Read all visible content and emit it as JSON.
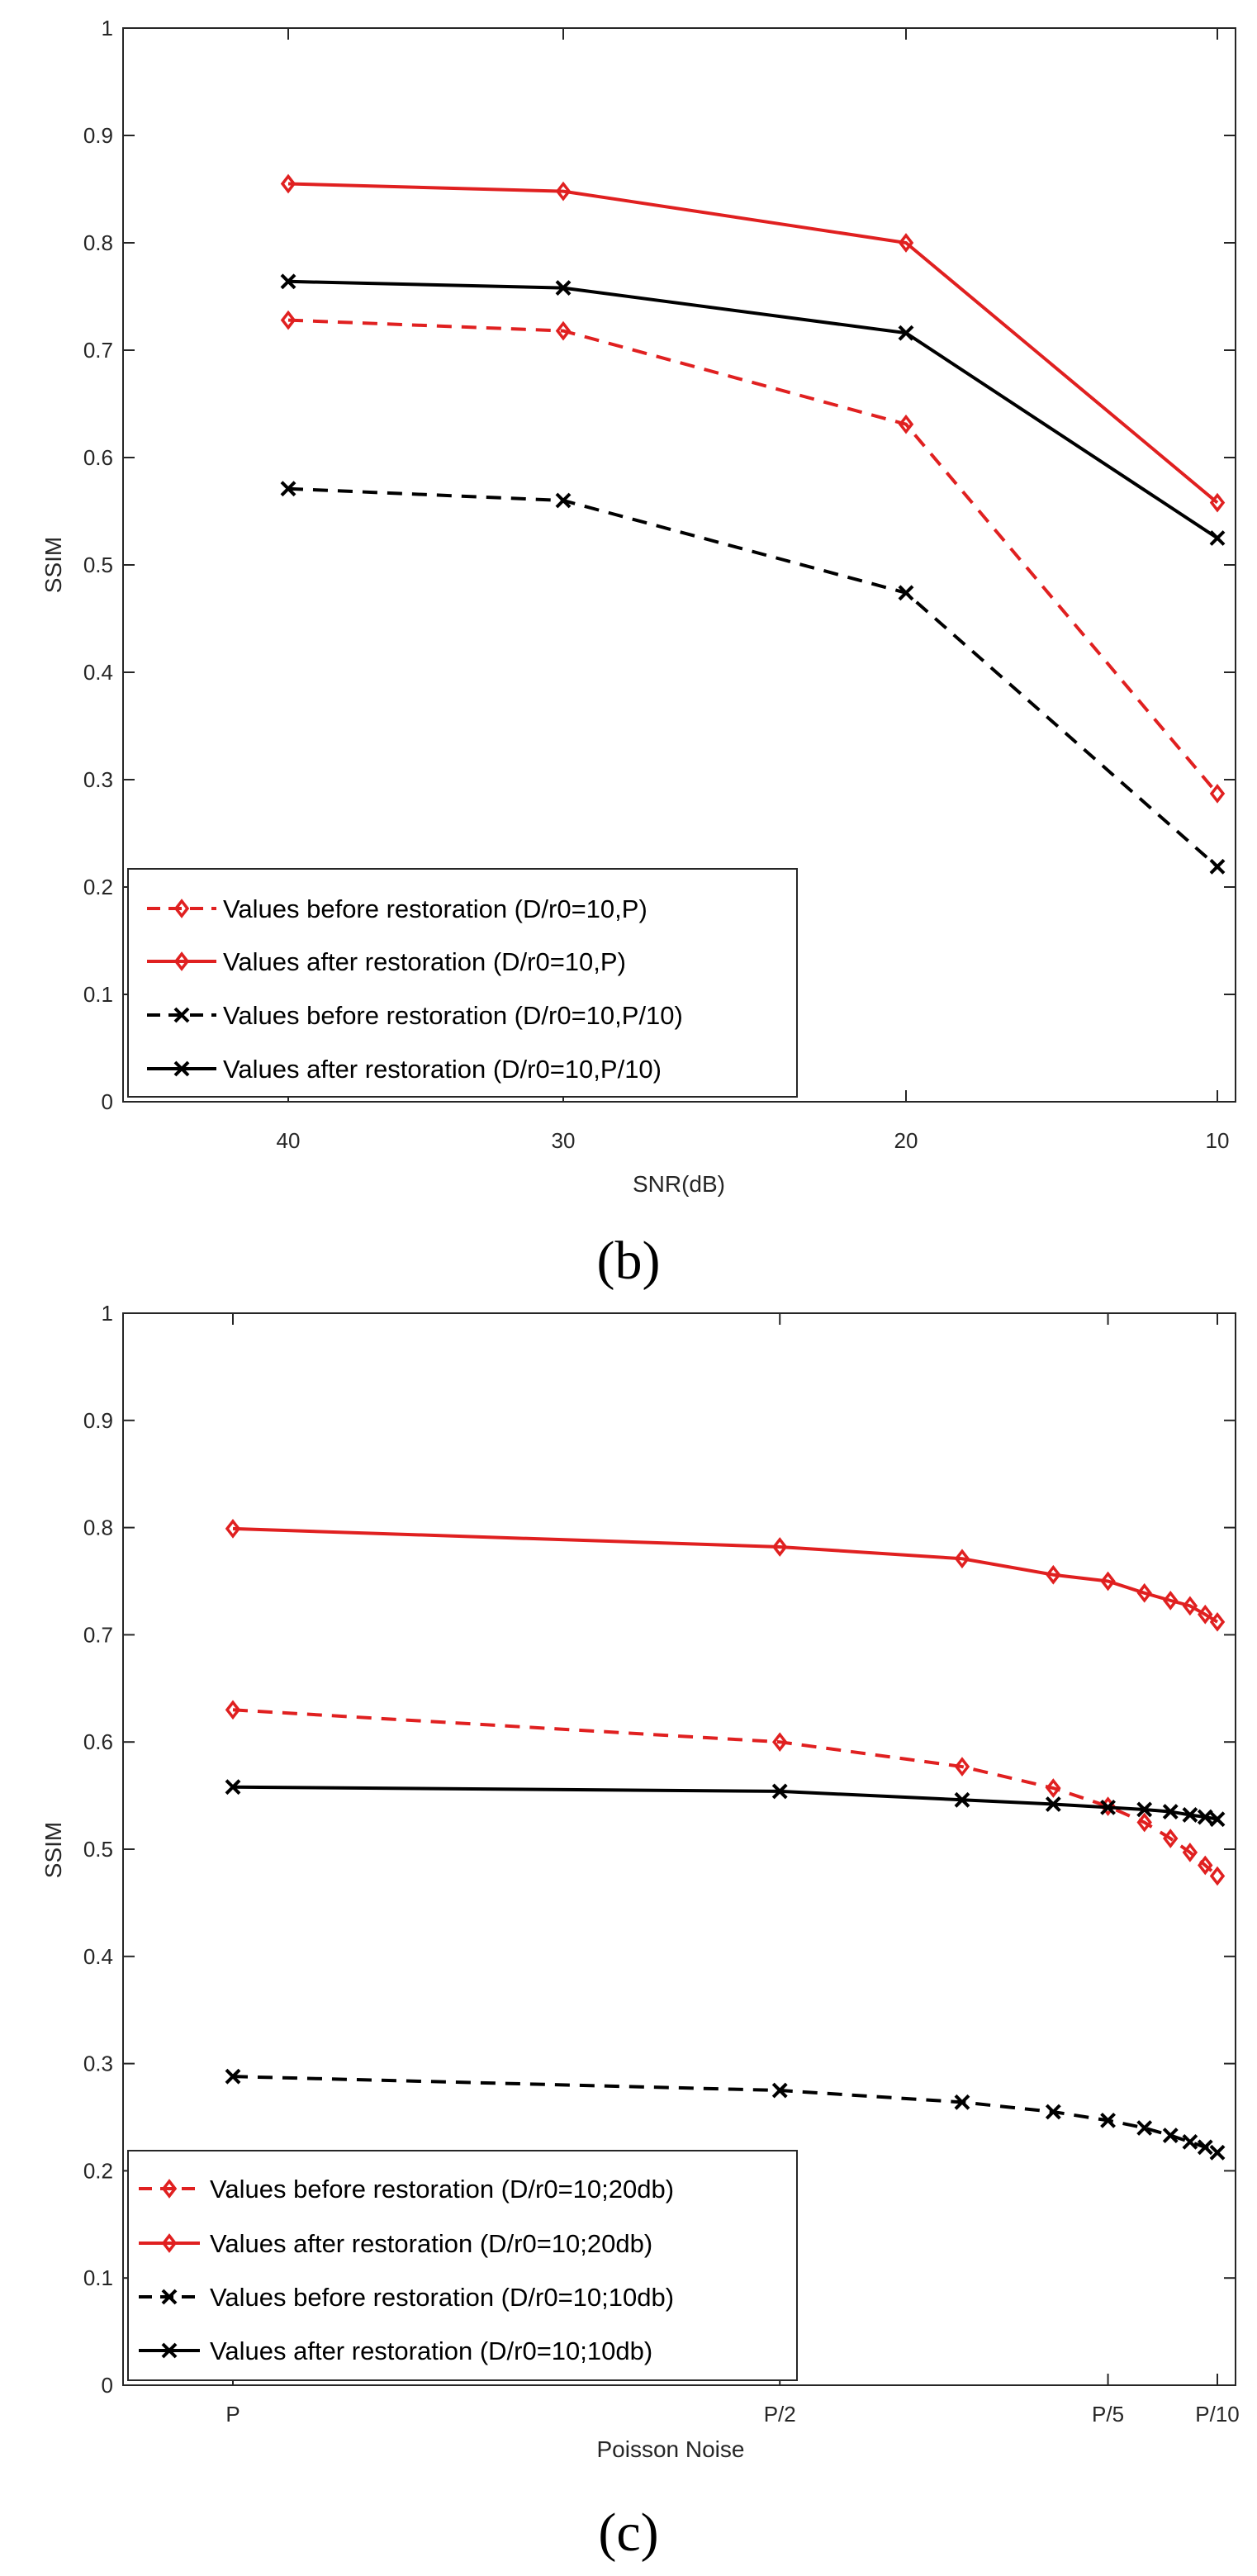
{
  "chart_data": [
    {
      "type": "line",
      "id": "b",
      "caption": "(b)",
      "xlabel": "SNR(dB)",
      "ylabel": "SSIM",
      "ylim": [
        0,
        1
      ],
      "yticks": [
        "0",
        "0.1",
        "0.2",
        "0.3",
        "0.4",
        "0.5",
        "0.6",
        "0.7",
        "0.8",
        "0.9",
        "1"
      ],
      "categories": [
        "40",
        "30",
        "20",
        "10"
      ],
      "legend_position": "bottom-left",
      "series": [
        {
          "name": "Values before restoration (D/r0=10,P)",
          "color": "#e02020",
          "dashed": true,
          "marker": "diamond",
          "values": [
            0.728,
            0.718,
            0.631,
            0.287
          ]
        },
        {
          "name": "Values after restoration (D/r0=10,P)",
          "color": "#e02020",
          "dashed": false,
          "marker": "diamond",
          "values": [
            0.855,
            0.848,
            0.8,
            0.558
          ]
        },
        {
          "name": "Values before restoration (D/r0=10,P/10)",
          "color": "#000000",
          "dashed": true,
          "marker": "x",
          "values": [
            0.571,
            0.56,
            0.474,
            0.219
          ]
        },
        {
          "name": "Values after restoration (D/r0=10,P/10)",
          "color": "#000000",
          "dashed": false,
          "marker": "x",
          "values": [
            0.764,
            0.758,
            0.716,
            0.525
          ]
        }
      ]
    },
    {
      "type": "line",
      "id": "c",
      "caption": "(c)",
      "xlabel": "Poisson Noise",
      "ylabel": "SSIM",
      "ylim": [
        0,
        1
      ],
      "yticks": [
        "0",
        "0.1",
        "0.2",
        "0.3",
        "0.4",
        "0.5",
        "0.6",
        "0.7",
        "0.8",
        "0.9",
        "1"
      ],
      "x": [
        1,
        2,
        3,
        4,
        5,
        6,
        7,
        8,
        9,
        10
      ],
      "xticks": [
        {
          "value": 1,
          "label": "P"
        },
        {
          "value": 2,
          "label": "P/2"
        },
        {
          "value": 5,
          "label": "P/5"
        },
        {
          "value": 10,
          "label": "P/10"
        }
      ],
      "legend_position": "bottom-left",
      "series": [
        {
          "name": "Values before restoration (D/r0=10;20db)",
          "color": "#e02020",
          "dashed": true,
          "marker": "diamond",
          "values": [
            0.63,
            0.6,
            0.577,
            0.557,
            0.54,
            0.525,
            0.51,
            0.497,
            0.485,
            0.475
          ]
        },
        {
          "name": "Values after restoration  (D/r0=10;20db)",
          "color": "#e02020",
          "dashed": false,
          "marker": "diamond",
          "values": [
            0.799,
            0.782,
            0.771,
            0.756,
            0.75,
            0.739,
            0.732,
            0.727,
            0.719,
            0.712
          ]
        },
        {
          "name": "Values before restoration (D/r0=10;10db)",
          "color": "#000000",
          "dashed": true,
          "marker": "x",
          "values": [
            0.288,
            0.275,
            0.264,
            0.255,
            0.247,
            0.24,
            0.233,
            0.227,
            0.222,
            0.217
          ]
        },
        {
          "name": "Values after restoration (D/r0=10;10db)",
          "color": "#000000",
          "dashed": false,
          "marker": "x",
          "values": [
            0.558,
            0.554,
            0.546,
            0.542,
            0.539,
            0.537,
            0.535,
            0.532,
            0.53,
            0.528
          ]
        }
      ]
    }
  ]
}
